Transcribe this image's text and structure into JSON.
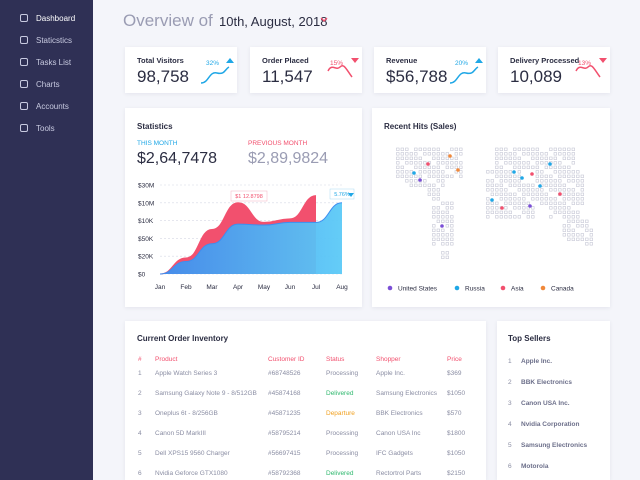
{
  "sidebar": {
    "items": [
      "Dashboard",
      "Staticstics",
      "Tasks List",
      "Charts",
      "Accounts",
      "Tools"
    ]
  },
  "header": {
    "title": "Overview of",
    "date": "10th, August, 2018"
  },
  "cards": [
    {
      "title": "Total Visitors",
      "value": "98,758",
      "change": "32%",
      "color": "#1fa7e6"
    },
    {
      "title": "Order Placed",
      "value": "11,547",
      "change": "15%",
      "color": "#f2506e"
    },
    {
      "title": "Revenue",
      "value": "$56,788",
      "change": "20%",
      "color": "#1fa7e6"
    },
    {
      "title": "Delivery Processed",
      "value": "10,089",
      "change": "13%",
      "color": "#f2506e"
    }
  ],
  "statistics": {
    "title": "Statistics",
    "this_month_label": "THIS MONTH",
    "this_month_value": "$2,64,7478",
    "previous_month_label": "PREVIOUS MONTH",
    "previous_month_value": "$2,89,9824"
  },
  "chart_data": {
    "type": "area",
    "categories": [
      "Jan",
      "Feb",
      "Mar",
      "Apr",
      "May",
      "Jun",
      "Jul",
      "Aug"
    ],
    "series": [
      {
        "color": "#f2506e",
        "values": [
          0,
          0.9,
          2.5,
          4.0,
          2.9,
          3.1,
          4.4,
          null
        ]
      },
      {
        "color": "#3d8ef0",
        "values": [
          0,
          0.7,
          1.7,
          2.8,
          2.75,
          2.9,
          2.9,
          4.0
        ]
      }
    ],
    "ylim": [
      0,
      5
    ],
    "yticks": [
      {
        "value": 0,
        "label": "$0"
      },
      {
        "value": 1,
        "label": "$20K"
      },
      {
        "value": 2,
        "label": "$50K"
      },
      {
        "value": 3,
        "label": "$10K"
      },
      {
        "value": 4,
        "label": "$10M"
      },
      {
        "value": 5,
        "label": "$30M"
      }
    ],
    "annotations": [
      "$1 12.8798",
      "5.76%"
    ],
    "grid": true
  },
  "map": {
    "title": "Recent Hits (Sales)",
    "legend": [
      {
        "name": "United States",
        "color": "#7b4fd6"
      },
      {
        "name": "Russia",
        "color": "#1fa7e6"
      },
      {
        "name": "Asia",
        "color": "#f2506e"
      },
      {
        "name": "Canada",
        "color": "#f0883a"
      }
    ]
  },
  "inventory": {
    "title": "Current Order Inventory",
    "columns": [
      "#",
      "Product",
      "Customer ID",
      "Status",
      "Shopper",
      "Price"
    ],
    "rows": [
      [
        "1",
        "Apple Watch Series 3",
        "#68748526",
        "Processing",
        "Apple Inc.",
        "$369"
      ],
      [
        "2",
        "Samsung Galaxy Note 9 - 8/512GB",
        "#45874168",
        "Delivered",
        "Samsung Electronics",
        "$1050"
      ],
      [
        "3",
        "Oneplus 6t - 8/256GB",
        "#45871235",
        "Departure",
        "BBK Electronics",
        "$570"
      ],
      [
        "4",
        "Canon 5D MarkIII",
        "#58795214",
        "Processing",
        "Canon USA Inc",
        "$1800"
      ],
      [
        "5",
        "Dell XPS15 9560 Charger",
        "#56697415",
        "Processing",
        "IFC Gadgets",
        "$1050"
      ],
      [
        "6",
        "Nvidia Geforce GTX1080",
        "#58792368",
        "Delivered",
        "Rectortrol Parts",
        "$2150"
      ]
    ],
    "status_colors": [
      "#8a8da3",
      "#2fb86e",
      "#f0a020",
      "#8a8da3",
      "#8a8da3",
      "#2fb86e"
    ]
  },
  "top_sellers": {
    "title": "Top Sellers",
    "items": [
      {
        "rank": "1",
        "name": "Apple Inc."
      },
      {
        "rank": "2",
        "name": "BBK Electronics"
      },
      {
        "rank": "3",
        "name": "Canon USA Inc."
      },
      {
        "rank": "4",
        "name": "Nvidia Corporation"
      },
      {
        "rank": "5",
        "name": "Samsung Electronics"
      },
      {
        "rank": "6",
        "name": "Motorola"
      }
    ]
  }
}
